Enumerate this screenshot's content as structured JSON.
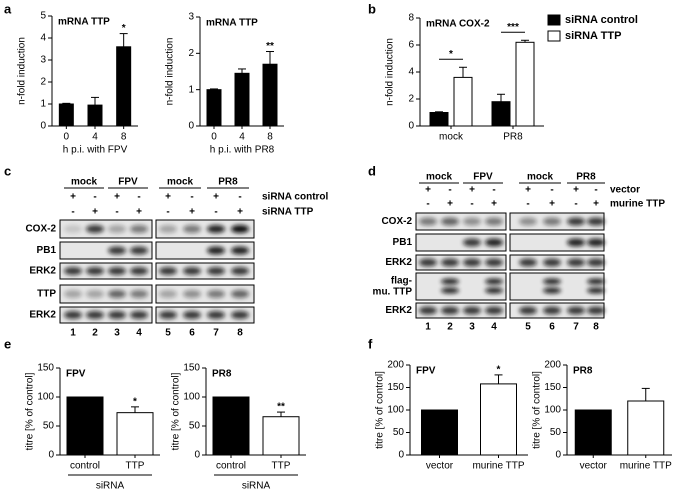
{
  "panels": [
    "a",
    "b",
    "c",
    "d",
    "e",
    "f"
  ],
  "chart_data": [
    {
      "type": "bar",
      "title": "mRNA TTP",
      "categories": [
        "0",
        "4",
        "8"
      ],
      "xlabel": "h p.i. with FPV",
      "ylabel": "n-fold induction",
      "ylim": [
        0,
        5
      ],
      "yticks": [
        0,
        1,
        2,
        3,
        4,
        5
      ],
      "series": [
        {
          "color": "#000000",
          "values": [
            1.0,
            0.95,
            3.6
          ],
          "errors": [
            0.03,
            0.35,
            0.6
          ]
        }
      ],
      "annotations": [
        null,
        null,
        "*"
      ]
    },
    {
      "type": "bar",
      "title": "mRNA TTP",
      "categories": [
        "0",
        "4",
        "8"
      ],
      "xlabel": "h p.i. with PR8",
      "ylabel": "n-fold induction",
      "ylim": [
        0,
        3
      ],
      "yticks": [
        0,
        1,
        2,
        3
      ],
      "series": [
        {
          "color": "#000000",
          "values": [
            1.0,
            1.45,
            1.7
          ],
          "errors": [
            0.02,
            0.12,
            0.35
          ]
        }
      ],
      "annotations": [
        null,
        null,
        "**"
      ]
    },
    {
      "type": "bar",
      "title": "mRNA COX-2",
      "categories": [
        "mock",
        "PR8"
      ],
      "ylabel": "n-fold induction",
      "ylim": [
        0,
        8
      ],
      "yticks": [
        0,
        2,
        4,
        6,
        8
      ],
      "legend": "right",
      "series": [
        {
          "name": "siRNA control",
          "color": "#000000",
          "values": [
            1.0,
            1.8
          ],
          "errors": [
            0.05,
            0.55
          ]
        },
        {
          "name": "siRNA TTP",
          "color": "#ffffff",
          "values": [
            3.6,
            6.2
          ],
          "errors": [
            0.75,
            0.15
          ]
        }
      ],
      "annotations": [
        "*",
        "***"
      ]
    },
    {
      "type": "bar",
      "title": "FPV",
      "categories": [
        "control",
        "TTP"
      ],
      "xlabel": "siRNA",
      "ylabel": "titre [% of control]",
      "ylim": [
        0,
        150
      ],
      "yticks": [
        0,
        50,
        100,
        150
      ],
      "colors": [
        "#000000",
        "#ffffff"
      ],
      "series": [
        {
          "values": [
            100,
            73
          ],
          "errors": [
            null,
            10
          ]
        }
      ],
      "annotations": [
        null,
        "*"
      ]
    },
    {
      "type": "bar",
      "title": "PR8",
      "categories": [
        "control",
        "TTP"
      ],
      "xlabel": "siRNA",
      "ylabel": "titre [% of control]",
      "ylim": [
        0,
        150
      ],
      "yticks": [
        0,
        50,
        100,
        150
      ],
      "colors": [
        "#000000",
        "#ffffff"
      ],
      "series": [
        {
          "values": [
            100,
            66
          ],
          "errors": [
            null,
            8
          ]
        }
      ],
      "annotations": [
        null,
        "**"
      ]
    },
    {
      "type": "bar",
      "title": "FPV",
      "categories": [
        "vector",
        "murine TTP"
      ],
      "ylabel": "titre [% of control]",
      "ylim": [
        0,
        200
      ],
      "yticks": [
        0,
        50,
        100,
        150,
        200
      ],
      "colors": [
        "#000000",
        "#ffffff"
      ],
      "series": [
        {
          "values": [
            100,
            158
          ],
          "errors": [
            null,
            20
          ]
        }
      ],
      "annotations": [
        null,
        "*"
      ]
    },
    {
      "type": "bar",
      "title": "PR8",
      "categories": [
        "vector",
        "murine TTP"
      ],
      "ylabel": "titre [% of control]",
      "ylim": [
        0,
        200
      ],
      "yticks": [
        0,
        50,
        100,
        150,
        200
      ],
      "colors": [
        "#000000",
        "#ffffff"
      ],
      "series": [
        {
          "values": [
            100,
            120
          ],
          "errors": [
            null,
            28
          ]
        }
      ],
      "annotations": [
        null,
        null
      ]
    }
  ],
  "blots": [
    {
      "groups": [
        "mock",
        "FPV",
        "mock",
        "PR8"
      ],
      "conditions": [
        {
          "label": "siRNA control",
          "signs": [
            "+",
            "-",
            "+",
            "-",
            "+",
            "-",
            "+",
            "-"
          ]
        },
        {
          "label": "siRNA TTP",
          "signs": [
            "-",
            "+",
            "-",
            "+",
            "-",
            "+",
            "-",
            "+"
          ]
        }
      ],
      "rows": [
        "COX-2",
        "PB1",
        "ERK2",
        "TTP",
        "ERK2"
      ],
      "lanes": [
        "1",
        "2",
        "3",
        "4",
        "5",
        "6",
        "7",
        "8"
      ]
    },
    {
      "groups": [
        "mock",
        "FPV",
        "mock",
        "PR8"
      ],
      "conditions": [
        {
          "label": "vector",
          "signs": [
            "+",
            "-",
            "+",
            "-",
            "+",
            "-",
            "+",
            "-"
          ]
        },
        {
          "label": "murine TTP",
          "signs": [
            "-",
            "+",
            "-",
            "+",
            "-",
            "+",
            "-",
            "+"
          ]
        }
      ],
      "rows": [
        "COX-2",
        "PB1",
        "ERK2",
        [
          "flag-",
          "mu. TTP"
        ],
        "ERK2"
      ],
      "lanes": [
        "1",
        "2",
        "3",
        "4",
        "5",
        "6",
        "7",
        "8"
      ]
    }
  ]
}
